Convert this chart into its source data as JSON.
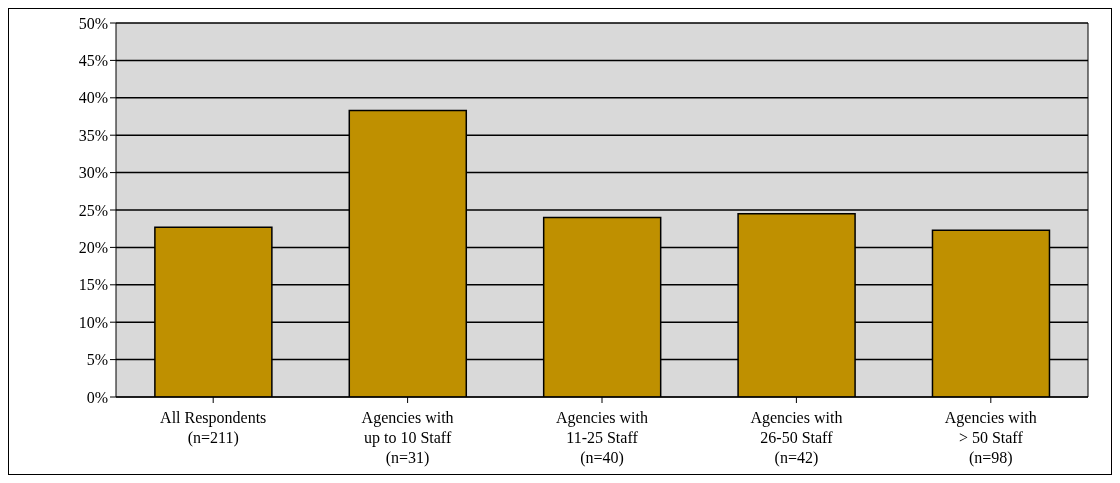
{
  "chart_data": {
    "type": "bar",
    "categories": [
      "All Respondents (n=211)",
      "Agencies with up to 10 Staff (n=31)",
      "Agencies with 11-25 Staff (n=40)",
      "Agencies with 26-50 Staff (n=42)",
      "Agencies with > 50 Staff (n=98)"
    ],
    "values": [
      22.7,
      38.3,
      24.0,
      24.5,
      22.3
    ],
    "color": "#bf9000",
    "ylim": [
      0,
      50
    ],
    "yticks": [
      {
        "value": 0,
        "label": "0%"
      },
      {
        "value": 5,
        "label": "5%"
      },
      {
        "value": 10,
        "label": "10%"
      },
      {
        "value": 15,
        "label": "15%"
      },
      {
        "value": 20,
        "label": "20%"
      },
      {
        "value": 25,
        "label": "25%"
      },
      {
        "value": 30,
        "label": "30%"
      },
      {
        "value": 35,
        "label": "35%"
      },
      {
        "value": 40,
        "label": "40%"
      },
      {
        "value": 45,
        "label": "45%"
      },
      {
        "value": 50,
        "label": "50%"
      }
    ],
    "grid": "y"
  }
}
